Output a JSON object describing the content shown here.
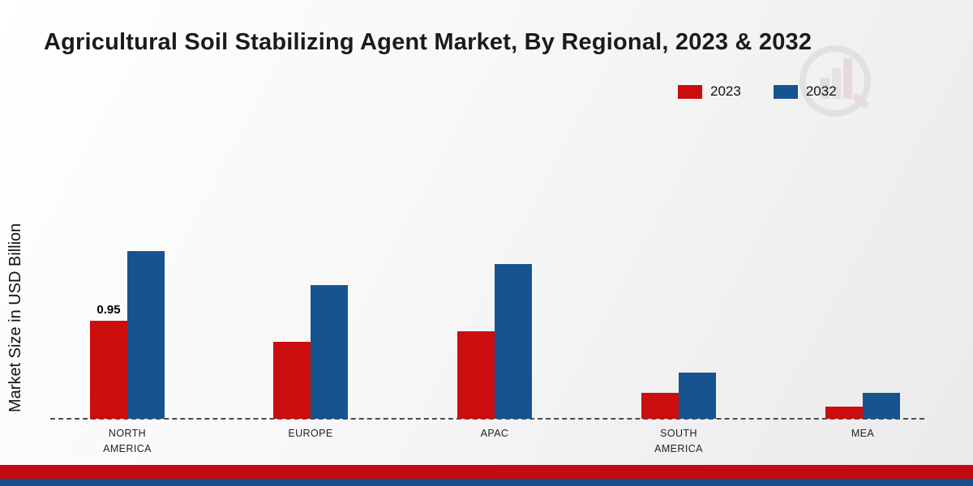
{
  "title": "Agricultural Soil Stabilizing Agent Market, By Regional, 2023 & 2032",
  "ylabel": "Market Size in USD Billion",
  "legend": {
    "items": [
      {
        "label": "2023",
        "color": "#cc0d0d"
      },
      {
        "label": "2032",
        "color": "#17548f"
      }
    ]
  },
  "footer": {
    "red_band_color": "#c20b0e",
    "blue_band_color": "#174f8c"
  },
  "watermark_icon": "market-research-bar-chart-logo",
  "chart_data": {
    "type": "bar",
    "title": "Agricultural Soil Stabilizing Agent Market, By Regional, 2023 & 2032",
    "xlabel": "",
    "ylabel": "Market Size in USD Billion",
    "categories": [
      "NORTH AMERICA",
      "EUROPE",
      "APAC",
      "SOUTH AMERICA",
      "MEA"
    ],
    "series": [
      {
        "name": "2023",
        "color": "#cc0d0d",
        "values": [
          0.95,
          0.75,
          0.85,
          0.25,
          0.12
        ]
      },
      {
        "name": "2032",
        "color": "#17548f",
        "values": [
          1.63,
          1.3,
          1.5,
          0.45,
          0.25
        ]
      }
    ],
    "annotations": [
      {
        "series": "2023",
        "category": "NORTH AMERICA",
        "text": "0.95"
      }
    ],
    "ylim": [
      0,
      2.0
    ],
    "grid": false,
    "baseline_style": "dashed",
    "legend_position": "top-right"
  }
}
